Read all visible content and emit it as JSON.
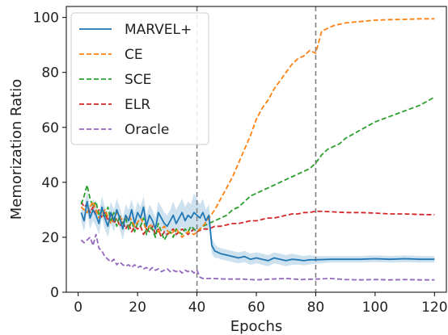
{
  "chart_data": {
    "type": "line",
    "title": "",
    "xlabel": "Epochs",
    "ylabel": "Memorization Ratio",
    "xlim": [
      -4,
      124
    ],
    "ylim": [
      0,
      104
    ],
    "xticks": [
      0,
      20,
      40,
      60,
      80,
      100,
      120
    ],
    "yticks": [
      0,
      20,
      40,
      60,
      80,
      100
    ],
    "grid": false,
    "legend_position": "top-left",
    "vlines": [
      {
        "x": 40,
        "color": "#808080"
      },
      {
        "x": 80,
        "color": "#808080"
      }
    ],
    "series": [
      {
        "name": "MARVEL+",
        "color": "#1f77b4",
        "style": "solid",
        "x": [
          1,
          2,
          3,
          4,
          5,
          6,
          7,
          8,
          9,
          10,
          11,
          12,
          13,
          14,
          15,
          16,
          17,
          18,
          19,
          20,
          21,
          22,
          23,
          24,
          25,
          26,
          27,
          28,
          29,
          30,
          31,
          32,
          33,
          34,
          35,
          36,
          37,
          38,
          39,
          40,
          41,
          42,
          43,
          44,
          45,
          46,
          47,
          48,
          50,
          52,
          54,
          56,
          58,
          60,
          62,
          64,
          66,
          68,
          70,
          72,
          74,
          76,
          78,
          80,
          85,
          90,
          95,
          100,
          105,
          110,
          115,
          120
        ],
        "y": [
          29,
          26,
          33,
          27,
          30,
          28,
          25,
          31,
          27,
          24,
          29,
          26,
          30,
          27,
          23,
          28,
          26,
          30,
          25,
          29,
          27,
          31,
          24,
          28,
          26,
          23,
          29,
          27,
          25,
          24,
          26,
          28,
          25,
          27,
          29,
          26,
          28,
          27,
          29,
          28,
          27,
          29,
          26,
          28,
          17,
          15,
          14.5,
          14,
          13.5,
          13,
          12.5,
          13,
          12,
          12.5,
          12,
          11.5,
          12.5,
          12,
          11.5,
          12,
          11.8,
          11.5,
          11.8,
          11.8,
          12,
          12,
          12,
          12.2,
          12,
          12.2,
          12,
          12
        ],
        "band_upper": [
          32,
          30,
          37,
          31,
          34,
          32,
          29,
          35,
          31,
          28,
          33,
          30,
          34,
          31,
          27,
          32,
          30,
          34,
          29,
          33,
          31,
          35,
          28,
          32,
          30,
          27,
          33,
          31,
          29,
          28,
          30,
          33,
          30,
          32,
          34,
          31,
          33,
          32,
          36,
          34,
          32,
          34,
          30,
          32,
          20,
          17.5,
          16.5,
          16,
          15.5,
          15,
          14.5,
          15,
          14,
          14.5,
          14,
          13.5,
          14.5,
          14,
          13.5,
          14,
          13.6,
          13.2,
          13.5,
          13.2,
          13.2,
          13.2,
          13.2,
          13.4,
          13.2,
          13.4,
          13.2,
          13.2
        ],
        "band_lower": [
          26,
          22,
          29,
          23,
          26,
          24,
          21,
          27,
          23,
          20,
          25,
          22,
          26,
          23,
          19,
          24,
          22,
          26,
          21,
          25,
          23,
          27,
          20,
          24,
          22,
          19,
          25,
          23,
          21,
          20,
          22,
          23,
          20,
          22,
          24,
          21,
          23,
          22,
          22,
          22,
          22,
          24,
          22,
          24,
          14,
          12.5,
          12.5,
          12,
          11.5,
          11,
          10.5,
          11,
          10,
          10.5,
          10,
          9.5,
          10.5,
          10,
          9.5,
          10,
          10,
          9.8,
          10.1,
          10.4,
          10.8,
          10.8,
          10.8,
          11,
          10.8,
          11,
          10.8,
          10.8
        ]
      },
      {
        "name": "CE",
        "color": "#ff7f0e",
        "style": "dashed",
        "x": [
          1,
          3,
          5,
          7,
          9,
          11,
          13,
          15,
          17,
          19,
          21,
          23,
          25,
          27,
          29,
          31,
          33,
          35,
          37,
          39,
          40,
          42,
          44,
          46,
          48,
          50,
          52,
          54,
          56,
          58,
          60,
          62,
          64,
          66,
          68,
          70,
          72,
          74,
          76,
          78,
          80,
          82,
          84,
          86,
          88,
          90,
          95,
          100,
          105,
          110,
          115,
          120
        ],
        "y": [
          31,
          29,
          33,
          27,
          30,
          25,
          29,
          26,
          28,
          24,
          27,
          23,
          25,
          22,
          24,
          21,
          23,
          20,
          22,
          21,
          22,
          24,
          27,
          30,
          34,
          38,
          42,
          47,
          52,
          57,
          63,
          67,
          70,
          74,
          77,
          80,
          83,
          85,
          86,
          88,
          87,
          95,
          96,
          97,
          97.5,
          98,
          98.5,
          99,
          99.2,
          99.3,
          99.5,
          99.5
        ]
      },
      {
        "name": "SCE",
        "color": "#2ca02c",
        "style": "dashed",
        "x": [
          1,
          2,
          3,
          4,
          5,
          6,
          7,
          8,
          9,
          10,
          11,
          12,
          13,
          14,
          15,
          16,
          17,
          18,
          19,
          20,
          21,
          22,
          23,
          24,
          25,
          26,
          27,
          28,
          29,
          30,
          31,
          32,
          33,
          34,
          35,
          36,
          37,
          38,
          39,
          40,
          42,
          44,
          46,
          48,
          50,
          52,
          54,
          56,
          58,
          60,
          62,
          64,
          66,
          68,
          70,
          72,
          74,
          76,
          78,
          80,
          82,
          84,
          86,
          88,
          90,
          95,
          100,
          105,
          110,
          115,
          120
        ],
        "y": [
          32,
          35,
          39,
          34,
          31,
          33,
          28,
          30,
          27,
          31,
          26,
          29,
          24,
          28,
          25,
          27,
          23,
          26,
          22,
          25,
          24,
          27,
          21,
          24,
          23,
          20,
          25,
          22,
          19,
          21,
          22,
          20,
          23,
          22,
          21,
          23,
          22,
          24,
          23,
          22,
          24,
          25,
          26,
          27,
          28,
          30,
          31,
          33,
          35,
          36,
          37,
          38,
          39,
          40,
          41,
          42,
          43,
          44,
          45,
          47,
          50,
          52,
          53,
          54,
          56,
          59,
          62,
          64,
          66,
          68,
          71
        ]
      },
      {
        "name": "ELR",
        "color": "#d62728",
        "style": "dashed",
        "x": [
          1,
          2,
          3,
          4,
          5,
          6,
          7,
          8,
          9,
          10,
          11,
          12,
          13,
          14,
          15,
          16,
          17,
          18,
          19,
          20,
          21,
          22,
          23,
          24,
          25,
          26,
          27,
          28,
          29,
          30,
          31,
          32,
          33,
          34,
          35,
          36,
          37,
          38,
          39,
          40,
          42,
          44,
          46,
          48,
          50,
          52,
          54,
          56,
          58,
          60,
          62,
          64,
          66,
          68,
          70,
          72,
          74,
          76,
          78,
          80,
          85,
          90,
          95,
          100,
          105,
          110,
          115,
          120
        ],
        "y": [
          33,
          31,
          32,
          29,
          31,
          28,
          30,
          27,
          29,
          26,
          28,
          25,
          27,
          24,
          26,
          23,
          25,
          22,
          24,
          23,
          24,
          21,
          23,
          22,
          24,
          21,
          23,
          20,
          22,
          21,
          22,
          23,
          21,
          22,
          23,
          22,
          21,
          22,
          23,
          22,
          23,
          23,
          24,
          24,
          24.5,
          25,
          25,
          25.5,
          26,
          26,
          26.5,
          27,
          27,
          27.5,
          28,
          28.5,
          28.5,
          29,
          29,
          29.5,
          29.3,
          29,
          29,
          28.8,
          28.5,
          28.5,
          28.3,
          28.2
        ]
      },
      {
        "name": "Oracle",
        "color": "#9467bd",
        "style": "dashed",
        "x": [
          1,
          2,
          3,
          4,
          5,
          6,
          7,
          8,
          9,
          10,
          11,
          12,
          13,
          14,
          15,
          16,
          17,
          18,
          19,
          20,
          21,
          22,
          23,
          24,
          25,
          26,
          27,
          28,
          29,
          30,
          31,
          32,
          33,
          34,
          35,
          36,
          37,
          38,
          39,
          40,
          41,
          42,
          45,
          50,
          55,
          60,
          65,
          70,
          75,
          80,
          85,
          90,
          95,
          100,
          105,
          110,
          115,
          120
        ],
        "y": [
          19,
          18,
          19,
          20,
          17,
          21,
          16,
          15,
          13,
          12,
          11,
          12,
          10,
          11,
          10,
          9.5,
          10,
          9,
          10,
          9,
          9.5,
          8.5,
          9,
          8,
          9,
          8,
          8.5,
          7.5,
          8,
          8.5,
          7.5,
          8,
          7.5,
          8,
          7,
          8,
          7.5,
          8,
          7,
          8,
          5.5,
          5,
          5,
          4.8,
          4.8,
          4.5,
          4.8,
          5,
          4.6,
          4.8,
          5,
          4.6,
          4.5,
          4.6,
          4.5,
          4.6,
          4.5,
          4.5
        ]
      }
    ]
  }
}
